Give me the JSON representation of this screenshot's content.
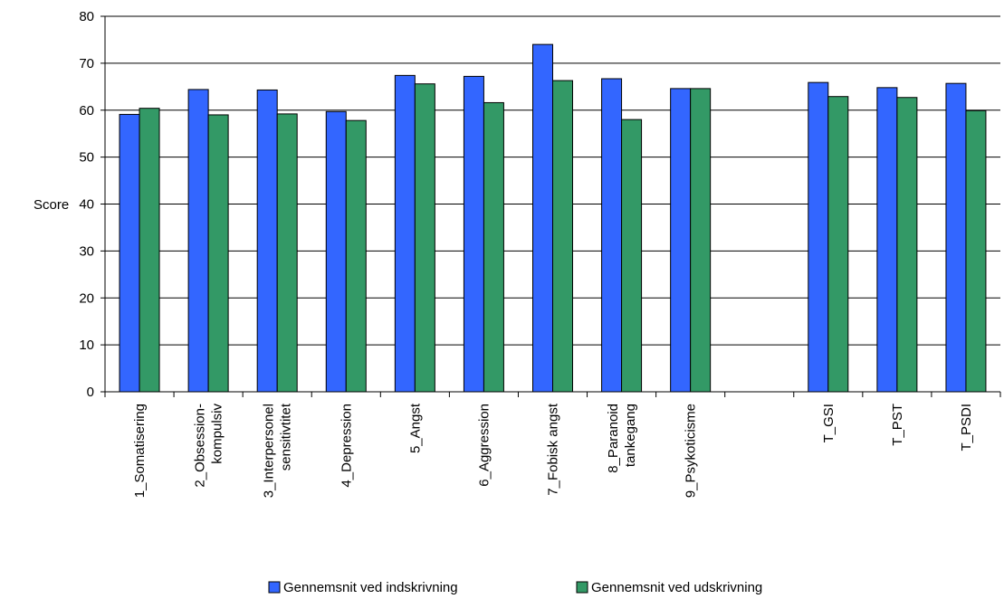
{
  "chart_data": {
    "type": "bar",
    "title": "",
    "xlabel": "",
    "ylabel": "Score",
    "ylim": [
      0,
      80
    ],
    "yticks": [
      0,
      10,
      20,
      30,
      40,
      50,
      60,
      70,
      80
    ],
    "grid": true,
    "legend_position": "bottom",
    "categories": [
      [
        "1_Somatisering"
      ],
      [
        "2_Obsession-",
        "kompulsiv"
      ],
      [
        "3_Interpersonel",
        "sensitivtitet"
      ],
      [
        "4_Depression"
      ],
      [
        "5_Angst"
      ],
      [
        "6_Aggression"
      ],
      [
        "7_Fobisk angst"
      ],
      [
        "8_Paranoid",
        "tankegang"
      ],
      [
        "9_Psykoticisme"
      ],
      [
        ""
      ],
      [
        "T_GSI"
      ],
      [
        "T_PST"
      ],
      [
        "T_PSDI"
      ]
    ],
    "series": [
      {
        "name": "Gennemsnit ved indskrivning",
        "color": "#3366ff",
        "values": [
          59.1,
          64.4,
          64.3,
          59.7,
          67.4,
          67.2,
          74.0,
          66.7,
          64.6,
          null,
          65.9,
          64.8,
          65.7
        ]
      },
      {
        "name": "Gennemsnit ved udskrivning",
        "color": "#339966",
        "values": [
          60.4,
          59.0,
          59.2,
          57.8,
          65.6,
          61.6,
          66.3,
          58.0,
          64.6,
          null,
          62.9,
          62.7,
          59.9
        ]
      }
    ]
  }
}
